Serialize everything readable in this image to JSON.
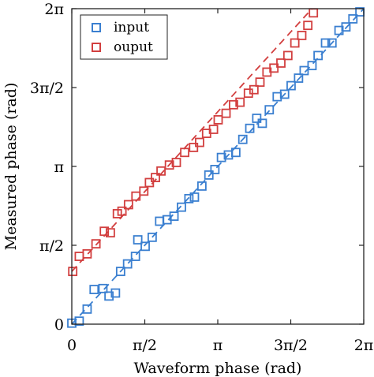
{
  "chart_data": {
    "type": "scatter",
    "title": "",
    "xlabel": "Waveform phase (rad)",
    "ylabel": "Measured phase (rad)",
    "xlim": [
      0,
      6.2832
    ],
    "ylim": [
      0,
      6.2832
    ],
    "grid": false,
    "legend_position": "top-left",
    "x_ticks": [
      {
        "value": 0,
        "label": "0"
      },
      {
        "value": 1.5708,
        "label": "π/2"
      },
      {
        "value": 3.1416,
        "label": "π"
      },
      {
        "value": 4.7124,
        "label": "3π/2"
      },
      {
        "value": 6.2832,
        "label": "2π"
      }
    ],
    "y_ticks": [
      {
        "value": 0,
        "label": "0"
      },
      {
        "value": 1.5708,
        "label": "π/2"
      },
      {
        "value": 3.1416,
        "label": "π"
      },
      {
        "value": 4.7124,
        "label": "3π/2"
      },
      {
        "value": 6.2832,
        "label": "2π"
      }
    ],
    "series": [
      {
        "name": "input",
        "color": "#3a7fd0",
        "marker": "square-open",
        "fit_line": {
          "style": "dashed",
          "x": [
            0,
            6.2832
          ],
          "y": [
            0,
            6.2832
          ]
        },
        "points": [
          [
            0.0,
            0.02
          ],
          [
            0.16,
            0.06
          ],
          [
            0.33,
            0.3
          ],
          [
            0.48,
            0.69
          ],
          [
            0.67,
            0.71
          ],
          [
            0.8,
            0.56
          ],
          [
            0.94,
            0.62
          ],
          [
            1.05,
            1.05
          ],
          [
            1.2,
            1.2
          ],
          [
            1.37,
            1.35
          ],
          [
            1.42,
            1.68
          ],
          [
            1.58,
            1.55
          ],
          [
            1.73,
            1.73
          ],
          [
            1.89,
            2.05
          ],
          [
            2.05,
            2.08
          ],
          [
            2.2,
            2.15
          ],
          [
            2.36,
            2.33
          ],
          [
            2.52,
            2.5
          ],
          [
            2.64,
            2.53
          ],
          [
            2.8,
            2.75
          ],
          [
            2.95,
            2.97
          ],
          [
            3.08,
            3.08
          ],
          [
            3.22,
            3.32
          ],
          [
            3.37,
            3.37
          ],
          [
            3.53,
            3.42
          ],
          [
            3.68,
            3.68
          ],
          [
            3.83,
            3.9
          ],
          [
            3.98,
            4.1
          ],
          [
            4.1,
            4.0
          ],
          [
            4.25,
            4.27
          ],
          [
            4.42,
            4.53
          ],
          [
            4.58,
            4.58
          ],
          [
            4.72,
            4.75
          ],
          [
            4.88,
            4.9
          ],
          [
            5.0,
            5.05
          ],
          [
            5.17,
            5.15
          ],
          [
            5.3,
            5.35
          ],
          [
            5.46,
            5.6
          ],
          [
            5.6,
            5.6
          ],
          [
            5.75,
            5.85
          ],
          [
            5.9,
            5.92
          ],
          [
            6.05,
            6.08
          ],
          [
            6.2,
            6.22
          ]
        ]
      },
      {
        "name": "ouput",
        "color": "#d23f3f",
        "marker": "square-open",
        "fit_line": {
          "style": "dashed",
          "x": [
            0,
            5.17
          ],
          "y": [
            1.05,
            6.2832
          ]
        },
        "points": [
          [
            0.02,
            1.05
          ],
          [
            0.16,
            1.35
          ],
          [
            0.33,
            1.4
          ],
          [
            0.52,
            1.6
          ],
          [
            0.7,
            1.85
          ],
          [
            0.83,
            1.82
          ],
          [
            0.98,
            2.2
          ],
          [
            1.08,
            2.25
          ],
          [
            1.22,
            2.38
          ],
          [
            1.38,
            2.55
          ],
          [
            1.55,
            2.65
          ],
          [
            1.67,
            2.82
          ],
          [
            1.8,
            2.92
          ],
          [
            1.92,
            3.05
          ],
          [
            2.1,
            3.17
          ],
          [
            2.25,
            3.22
          ],
          [
            2.43,
            3.42
          ],
          [
            2.62,
            3.52
          ],
          [
            2.75,
            3.62
          ],
          [
            2.9,
            3.8
          ],
          [
            3.05,
            3.88
          ],
          [
            3.15,
            4.07
          ],
          [
            3.32,
            4.2
          ],
          [
            3.48,
            4.37
          ],
          [
            3.62,
            4.42
          ],
          [
            3.8,
            4.6
          ],
          [
            3.92,
            4.67
          ],
          [
            4.05,
            4.82
          ],
          [
            4.2,
            5.02
          ],
          [
            4.35,
            5.1
          ],
          [
            4.5,
            5.2
          ],
          [
            4.65,
            5.35
          ],
          [
            4.8,
            5.6
          ],
          [
            4.95,
            5.75
          ],
          [
            5.08,
            5.95
          ],
          [
            5.2,
            6.2
          ]
        ]
      }
    ]
  }
}
